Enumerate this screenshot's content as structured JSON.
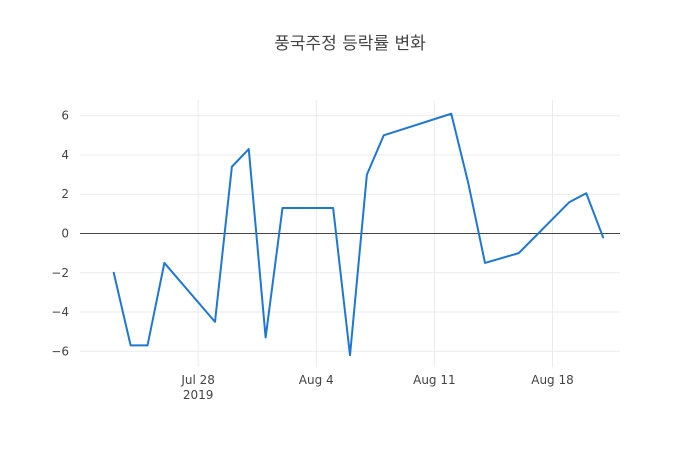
{
  "chart_data": {
    "type": "line",
    "title": "풍국주정 등락률 변화",
    "xlabel": "",
    "ylabel": "",
    "xlim": [
      "2019-07-21",
      "2019-08-22"
    ],
    "ylim": [
      -6.8,
      6.8
    ],
    "x_ticks": [
      {
        "value": "2019-07-28",
        "label": "Jul 28",
        "sublabel": "2019"
      },
      {
        "value": "2019-08-04",
        "label": "Aug 4",
        "sublabel": ""
      },
      {
        "value": "2019-08-11",
        "label": "Aug 11",
        "sublabel": ""
      },
      {
        "value": "2019-08-18",
        "label": "Aug 18",
        "sublabel": ""
      }
    ],
    "y_ticks": [
      {
        "value": -6,
        "label": "−6"
      },
      {
        "value": -4,
        "label": "−4"
      },
      {
        "value": -2,
        "label": "−2"
      },
      {
        "value": 0,
        "label": "0"
      },
      {
        "value": 2,
        "label": "2"
      },
      {
        "value": 4,
        "label": "4"
      },
      {
        "value": 6,
        "label": "6"
      }
    ],
    "grid": true,
    "zero_line": true,
    "line_color": "#1f77d4",
    "series": [
      {
        "x": [
          "2019-07-23",
          "2019-07-24",
          "2019-07-25",
          "2019-07-26",
          "2019-07-29",
          "2019-07-30",
          "2019-07-31",
          "2019-08-01",
          "2019-08-02",
          "2019-08-05",
          "2019-08-06",
          "2019-08-07",
          "2019-08-08",
          "2019-08-12",
          "2019-08-13",
          "2019-08-14",
          "2019-08-16",
          "2019-08-19",
          "2019-08-20",
          "2019-08-21"
        ],
        "y": [
          -2.0,
          -5.7,
          -5.7,
          -1.5,
          -4.5,
          3.4,
          4.3,
          -5.3,
          1.3,
          1.3,
          -6.2,
          3.0,
          5.0,
          6.1,
          2.6,
          -1.5,
          -1.0,
          1.6,
          2.05,
          -0.2
        ]
      }
    ]
  }
}
